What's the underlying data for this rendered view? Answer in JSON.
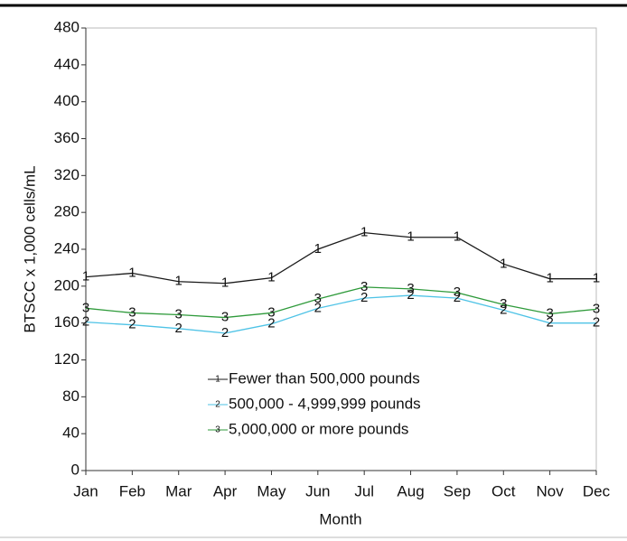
{
  "chart_data": {
    "type": "line",
    "x_label": "Month",
    "y_label": "BTSCC x 1,000 cells/mL",
    "categories": [
      "Jan",
      "Feb",
      "Mar",
      "Apr",
      "May",
      "Jun",
      "Jul",
      "Aug",
      "Sep",
      "Oct",
      "Nov",
      "Dec"
    ],
    "ylim": [
      0,
      480
    ],
    "yticks": [
      0,
      40,
      80,
      120,
      160,
      200,
      240,
      280,
      320,
      360,
      400,
      440,
      480
    ],
    "series": [
      {
        "name": "Fewer than 500,000 pounds",
        "symbol": "1",
        "color": "#1a1a1a",
        "values": [
          210,
          214,
          205,
          203,
          209,
          240,
          258,
          253,
          253,
          224,
          208,
          208
        ]
      },
      {
        "name": "500,000 - 4,999,999 pounds",
        "symbol": "2",
        "color": "#4ec3e6",
        "values": [
          161,
          158,
          154,
          149,
          159,
          176,
          187,
          190,
          187,
          174,
          160,
          160
        ]
      },
      {
        "name": "5,000,000 or more pounds",
        "symbol": "3",
        "color": "#2e9a3a",
        "values": [
          176,
          171,
          169,
          166,
          171,
          186,
          199,
          197,
          193,
          180,
          170,
          175
        ]
      }
    ]
  }
}
